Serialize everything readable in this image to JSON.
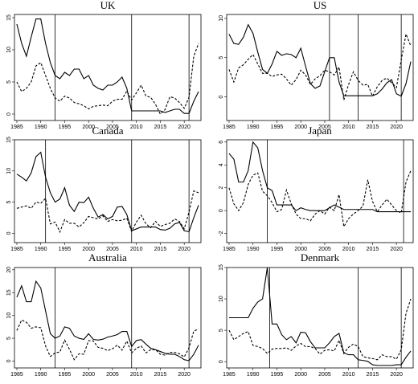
{
  "chart_data": [
    {
      "type": "line",
      "title": "UK",
      "x": [
        1985,
        1986,
        1987,
        1988,
        1989,
        1990,
        1991,
        1992,
        1993,
        1994,
        1995,
        1996,
        1997,
        1998,
        1999,
        2000,
        2001,
        2002,
        2003,
        2004,
        2005,
        2006,
        2007,
        2008,
        2009,
        2010,
        2011,
        2012,
        2013,
        2014,
        2015,
        2016,
        2017,
        2018,
        2019,
        2020,
        2021,
        2022,
        2023
      ],
      "series": [
        {
          "color": "#000000",
          "style": "solid",
          "values": [
            14,
            11,
            9,
            12,
            14.8,
            14.8,
            11,
            8,
            6,
            5.5,
            6.5,
            6,
            7,
            7,
            5.5,
            6,
            4.5,
            4,
            3.75,
            4.5,
            4.5,
            5,
            5.75,
            4,
            0.5,
            0.5,
            0.5,
            0.5,
            0.5,
            0.5,
            0.5,
            0.25,
            0.5,
            0.75,
            0.75,
            0.1,
            0.1,
            2,
            3.5
          ]
        },
        {
          "color": "#000000",
          "style": "dashed",
          "values": [
            5,
            3.5,
            4,
            5,
            7.5,
            8,
            6,
            4,
            2.5,
            2,
            2.8,
            2.5,
            1.8,
            1.6,
            1.3,
            0.8,
            1.2,
            1.3,
            1.4,
            1.3,
            2,
            2.3,
            2.3,
            3.6,
            2.2,
            3.3,
            4.5,
            2.8,
            2.6,
            1.5,
            0,
            0.7,
            2.7,
            2.5,
            1.8,
            0.9,
            2.6,
            9,
            11
          ]
        }
      ],
      "vlines": [
        1993,
        2009,
        2021
      ],
      "xlim": [
        1984.5,
        2023.5
      ],
      "xticks": [
        1985,
        1990,
        1995,
        2000,
        2005,
        2010,
        2015,
        2020
      ],
      "ylim": [
        -1,
        15.5
      ],
      "yticks": [
        0,
        5,
        10,
        15
      ]
    },
    {
      "type": "line",
      "title": "US",
      "x": [
        1985,
        1986,
        1987,
        1988,
        1989,
        1990,
        1991,
        1992,
        1993,
        1994,
        1995,
        1996,
        1997,
        1998,
        1999,
        2000,
        2001,
        2002,
        2003,
        2004,
        2005,
        2006,
        2007,
        2008,
        2009,
        2010,
        2011,
        2012,
        2013,
        2014,
        2015,
        2016,
        2017,
        2018,
        2019,
        2020,
        2021,
        2022,
        2023
      ],
      "series": [
        {
          "color": "#000000",
          "style": "solid",
          "values": [
            8,
            6.8,
            6.7,
            7.6,
            9.2,
            8.1,
            5.7,
            3.5,
            3,
            4.2,
            5.8,
            5.3,
            5.5,
            5.4,
            5,
            6.2,
            3.9,
            1.7,
            1.1,
            1.4,
            3.2,
            5,
            5,
            1.9,
            0.15,
            0.15,
            0.15,
            0.15,
            0.15,
            0.15,
            0.15,
            0.4,
            1,
            1.8,
            2.2,
            0.4,
            0.1,
            1.7,
            4.5
          ]
        },
        {
          "color": "#000000",
          "style": "dashed",
          "values": [
            3.5,
            1.9,
            3.7,
            4.1,
            4.8,
            5.4,
            4.2,
            3,
            3,
            2.6,
            2.8,
            2.9,
            2.3,
            1.5,
            2.2,
            3.4,
            2.8,
            1.6,
            2.3,
            2.7,
            3.4,
            3.2,
            2.8,
            3.8,
            -0.4,
            1.6,
            3.2,
            2.1,
            1.5,
            1.6,
            0.1,
            1.3,
            2.1,
            2.4,
            1.8,
            1.2,
            4.7,
            8,
            6.5
          ]
        }
      ],
      "vlines": [
        2006,
        2012,
        2021
      ],
      "xlim": [
        1984.5,
        2023.5
      ],
      "xticks": [
        1985,
        1990,
        1995,
        2000,
        2005,
        2010,
        2015,
        2020
      ],
      "ylim": [
        -3,
        10.5
      ],
      "yticks": [
        0,
        5,
        10
      ]
    },
    {
      "type": "line",
      "title": "Canada",
      "x": [
        1985,
        1986,
        1987,
        1988,
        1989,
        1990,
        1991,
        1992,
        1993,
        1994,
        1995,
        1996,
        1997,
        1998,
        1999,
        2000,
        2001,
        2002,
        2003,
        2004,
        2005,
        2006,
        2007,
        2008,
        2009,
        2010,
        2011,
        2012,
        2013,
        2014,
        2015,
        2016,
        2017,
        2018,
        2019,
        2020,
        2021,
        2022,
        2023
      ],
      "series": [
        {
          "color": "#000000",
          "style": "solid",
          "values": [
            9.5,
            9,
            8.4,
            9.7,
            12.3,
            13,
            9,
            6.5,
            5,
            5.5,
            7.3,
            4.5,
            3.5,
            5,
            4.9,
            5.8,
            4,
            2.6,
            3,
            2.3,
            2.7,
            4.2,
            4.3,
            3,
            0.4,
            0.7,
            1,
            1,
            1,
            1,
            0.6,
            0.5,
            0.8,
            1.5,
            1.75,
            0.4,
            0.25,
            2.5,
            4.5
          ]
        },
        {
          "color": "#000000",
          "style": "dashed",
          "values": [
            4,
            4.2,
            4.4,
            4,
            5,
            4.8,
            5.6,
            1.5,
            1.8,
            0.2,
            2.2,
            1.6,
            1.6,
            1,
            1.7,
            2.7,
            2.5,
            2.3,
            2.8,
            1.9,
            2.2,
            2,
            2.1,
            2.4,
            0.3,
            1.8,
            2.9,
            1.5,
            0.9,
            1.9,
            1.1,
            1.4,
            1.6,
            2.3,
            1.9,
            0.7,
            3.4,
            6.8,
            6.5
          ]
        }
      ],
      "vlines": [
        1991,
        2009,
        2021
      ],
      "xlim": [
        1984.5,
        2023.5
      ],
      "xticks": [
        1985,
        1990,
        1995,
        2000,
        2005,
        2010,
        2015,
        2020
      ],
      "ylim": [
        -1.5,
        15
      ],
      "yticks": [
        0,
        5,
        10,
        15
      ]
    },
    {
      "type": "line",
      "title": "Japan",
      "x": [
        1985,
        1986,
        1987,
        1988,
        1989,
        1990,
        1991,
        1992,
        1993,
        1994,
        1995,
        1996,
        1997,
        1998,
        1999,
        2000,
        2001,
        2002,
        2003,
        2004,
        2005,
        2006,
        2007,
        2008,
        2009,
        2010,
        2011,
        2012,
        2013,
        2014,
        2015,
        2016,
        2017,
        2018,
        2019,
        2020,
        2021,
        2022,
        2023
      ],
      "series": [
        {
          "color": "#000000",
          "style": "solid",
          "values": [
            5,
            4.5,
            2.5,
            2.5,
            3.5,
            6,
            5.5,
            3.5,
            2,
            1.75,
            0.5,
            0.5,
            0.5,
            0.5,
            0,
            0.25,
            0.1,
            0,
            0,
            0,
            0,
            0.25,
            0.5,
            0.3,
            0.1,
            0.1,
            0.1,
            0.1,
            0.1,
            0.1,
            0.1,
            -0.1,
            -0.1,
            -0.1,
            -0.1,
            -0.1,
            -0.1,
            -0.1,
            -0.1
          ]
        },
        {
          "color": "#000000",
          "style": "dashed",
          "values": [
            2,
            0.6,
            0,
            0.7,
            2.3,
            3.1,
            3.3,
            1.7,
            1.3,
            0.7,
            -0.1,
            0.1,
            1.8,
            0.6,
            -0.3,
            -0.7,
            -0.7,
            -0.9,
            -0.3,
            0,
            -0.3,
            0.3,
            0,
            1.4,
            -1.4,
            -0.7,
            -0.3,
            0,
            0.4,
            2.7,
            0.8,
            -0.1,
            0.5,
            1,
            0.5,
            0,
            -0.2,
            2.5,
            3.5
          ]
        }
      ],
      "vlines": [
        1993,
        2021.5
      ],
      "xlim": [
        1984.5,
        2023.5
      ],
      "xticks": [
        1985,
        1990,
        1995,
        2000,
        2005,
        2010,
        2015,
        2020
      ],
      "ylim": [
        -2.8,
        6.2
      ],
      "yticks": [
        -2,
        0,
        2,
        4,
        6
      ]
    },
    {
      "type": "line",
      "title": "Australia",
      "x": [
        1985,
        1986,
        1987,
        1988,
        1989,
        1990,
        1991,
        1992,
        1993,
        1994,
        1995,
        1996,
        1997,
        1998,
        1999,
        2000,
        2001,
        2002,
        2003,
        2004,
        2005,
        2006,
        2007,
        2008,
        2009,
        2010,
        2011,
        2012,
        2013,
        2014,
        2015,
        2016,
        2017,
        2018,
        2019,
        2020,
        2021,
        2022,
        2023
      ],
      "series": [
        {
          "color": "#000000",
          "style": "solid",
          "values": [
            14,
            16.5,
            13,
            13,
            17.5,
            16,
            11,
            6,
            5,
            5.5,
            7.5,
            7.2,
            5.5,
            5,
            4.75,
            6,
            4.75,
            4.6,
            4.8,
            5.25,
            5.5,
            5.8,
            6.5,
            6.5,
            3.2,
            4.5,
            4.7,
            3.7,
            2.8,
            2.5,
            2.1,
            1.7,
            1.5,
            1.5,
            1,
            0.3,
            0.1,
            1.5,
            3.5
          ]
        },
        {
          "color": "#000000",
          "style": "dashed",
          "values": [
            6.7,
            9,
            8.5,
            7.2,
            7.5,
            7.3,
            3.3,
            1,
            1.8,
            2,
            4.6,
            2.6,
            0.3,
            1.6,
            1.5,
            4.5,
            4.4,
            3,
            2.8,
            2.3,
            2.7,
            3.5,
            2.4,
            4.4,
            1.8,
            2.8,
            3.3,
            1.8,
            2.5,
            2.5,
            1.5,
            1.3,
            1.9,
            1.9,
            1.6,
            0.9,
            2.9,
            6.6,
            7
          ]
        }
      ],
      "vlines": [
        1993,
        2009,
        2021
      ],
      "xlim": [
        1984.5,
        2023.5
      ],
      "xticks": [
        1985,
        1990,
        1995,
        2000,
        2005,
        2010,
        2015,
        2020
      ],
      "ylim": [
        -1.5,
        20.5
      ],
      "yticks": [
        0,
        5,
        10,
        15,
        20
      ]
    },
    {
      "type": "line",
      "title": "Denmark",
      "x": [
        1985,
        1986,
        1987,
        1988,
        1989,
        1990,
        1991,
        1992,
        1993,
        1994,
        1995,
        1996,
        1997,
        1998,
        1999,
        2000,
        2001,
        2002,
        2003,
        2004,
        2005,
        2006,
        2007,
        2008,
        2009,
        2010,
        2011,
        2012,
        2013,
        2014,
        2015,
        2016,
        2017,
        2018,
        2019,
        2020,
        2021,
        2022,
        2023
      ],
      "series": [
        {
          "color": "#000000",
          "style": "solid",
          "values": [
            7,
            7,
            7,
            7,
            7,
            8.5,
            9.5,
            10,
            15,
            6,
            6,
            4.3,
            3.5,
            4,
            3,
            4.7,
            4.6,
            3.2,
            2.2,
            2.2,
            2.2,
            3,
            4,
            4.5,
            1.4,
            1.1,
            1.1,
            0.3,
            0.2,
            0.05,
            -0.5,
            -0.6,
            -0.6,
            -0.6,
            -0.6,
            -0.5,
            -0.5,
            0.7,
            1.7
          ]
        },
        {
          "color": "#000000",
          "style": "dashed",
          "values": [
            5,
            3.5,
            4,
            4.5,
            4.8,
            2.6,
            2.4,
            2.1,
            1.3,
            2,
            2.1,
            2.1,
            2.2,
            1.8,
            2.5,
            2.9,
            2.4,
            2.4,
            2.1,
            1.2,
            1.8,
            1.9,
            1.7,
            3.4,
            1.3,
            2.3,
            2.8,
            2.4,
            0.8,
            0.6,
            0.5,
            0.3,
            1.1,
            0.8,
            0.8,
            0.4,
            1.9,
            7.7,
            10
          ]
        }
      ],
      "vlines": [
        1993.5,
        2012,
        2021
      ],
      "xlim": [
        1984.5,
        2023.5
      ],
      "xticks": [
        1985,
        1990,
        1995,
        2000,
        2005,
        2010,
        2015,
        2020
      ],
      "ylim": [
        -1,
        15
      ],
      "yticks": [
        0,
        5,
        10,
        15
      ]
    }
  ]
}
